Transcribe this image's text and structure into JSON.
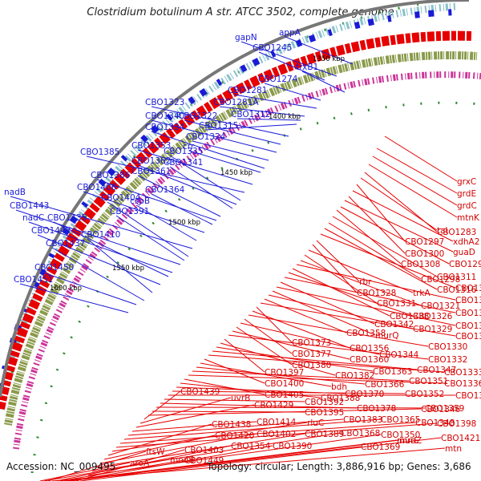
{
  "title": "Clostridium botulinum A str. ATCC 3502, complete genome",
  "footer": {
    "accession": "Accession: NC_009495",
    "summary": "Topology: circular; Length: 3,886,916 bp; Genes: 3,686"
  },
  "colors": {
    "forward_strand": "#1a1ad6",
    "reverse_strand": "#e60000",
    "backbone": "#777777",
    "gc_marks": "#2e8b2e"
  },
  "kbp_labels": [
    "1350 kbp",
    "1400 kbp",
    "1450 kbp",
    "1500 kbp",
    "1550 kbp",
    "1600 kbp"
  ],
  "blue_labels": [
    "appA",
    "gapN",
    "CBO1245",
    "trxB1",
    "CBO1274",
    "CBO1281",
    "CBO1281A",
    "CBO1312",
    "CBO1315",
    "CBO1323",
    "CBO1322",
    "CBO1340",
    "CBO1324",
    "CBO1334",
    "crr",
    "CBO1353",
    "CBO1385",
    "CBO1335",
    "CBO1362",
    "CBO1341",
    "CBO1361",
    "CBO1386",
    "CBO1364",
    "CBO1406",
    "cspB",
    "nadB",
    "CBO1404",
    "CBO1391",
    "CBO1443",
    "nadC",
    "CBO1435",
    "CBO1442",
    "CBO1410",
    "CBO1437",
    "CBO1450",
    "CBO1451"
  ],
  "red_labels": [
    "grxC",
    "grdE",
    "grdC",
    "mtnK",
    "CBO1283",
    "tal",
    "CBO1297",
    "xdhA2",
    "CBO1300",
    "guaD",
    "CBO1294",
    "CBO1308",
    "CBO1311",
    "CBO1298",
    "CBO1316",
    "CBO1302",
    "rbr",
    "CBO1328",
    "trkA",
    "CBO1331",
    "CBO1321",
    "CBO1306",
    "CBO1338",
    "CBO1326",
    "CBO1309",
    "CBO1342",
    "CBO1317",
    "murQ",
    "CBO1329",
    "CBO1358",
    "CBO1319",
    "CBO1373",
    "CBO1356",
    "CBO1330",
    "CBO1377",
    "CBO1344",
    "CBO1380",
    "CBO1360",
    "CBO1332",
    "CBO1397",
    "CBO1382",
    "CBO1363",
    "CBO1347",
    "CBO1333",
    "CBO1400",
    "bdh",
    "CBO1366",
    "CBO1351",
    "CBO1336",
    "CBO1405",
    "CBO1388",
    "CBO1370",
    "CBO1352",
    "CBO1337",
    "CBO1392",
    "CBO1378",
    "CBO1359",
    "CBO1395",
    "CBO1346",
    "CBO1439",
    "uvrB",
    "CBO1429",
    "CBO1414",
    "CBO1383",
    "CBO1365",
    "CBO1348",
    "CBO1398",
    "rluC",
    "CBO1438",
    "CBO1420",
    "CBO1402",
    "CBO1389",
    "CBO1368",
    "CBO1350",
    "mraZ",
    "CBO1421",
    "CBO1403",
    "CBO1390",
    "CBO1369",
    "murE",
    "CBO1449",
    "CBO1354",
    "mtn",
    "ftsW",
    "modB",
    "aroA"
  ]
}
